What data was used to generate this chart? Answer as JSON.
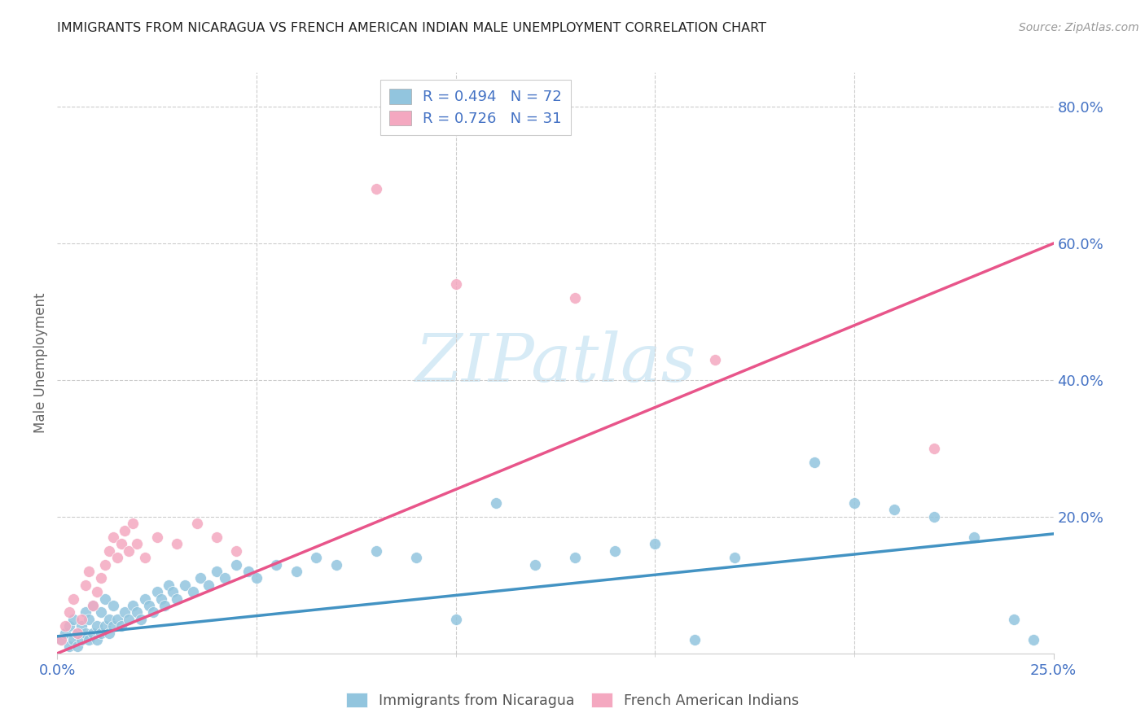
{
  "title": "IMMIGRANTS FROM NICARAGUA VS FRENCH AMERICAN INDIAN MALE UNEMPLOYMENT CORRELATION CHART",
  "source": "Source: ZipAtlas.com",
  "ylabel": "Male Unemployment",
  "R1": 0.494,
  "N1": 72,
  "R2": 0.726,
  "N2": 31,
  "blue_color": "#92c5de",
  "blue_edge_color": "#92c5de",
  "pink_color": "#f4a8c0",
  "pink_edge_color": "#f4a8c0",
  "blue_line_color": "#4393c3",
  "pink_line_color": "#e8558a",
  "blue_line_x0": 0.0,
  "blue_line_y0": 0.025,
  "blue_line_x1": 0.25,
  "blue_line_y1": 0.175,
  "pink_line_x0": 0.0,
  "pink_line_y0": 0.0,
  "pink_line_x1": 0.25,
  "pink_line_y1": 0.6,
  "legend1_label": "Immigrants from Nicaragua",
  "legend2_label": "French American Indians",
  "watermark_text": "ZIPatlas",
  "watermark_color": "#d0e8f5",
  "xlim": [
    0.0,
    0.25
  ],
  "ylim": [
    0.0,
    0.85
  ],
  "ytick_values": [
    0.2,
    0.4,
    0.6,
    0.8
  ],
  "ytick_labels": [
    "20.0%",
    "40.0%",
    "60.0%",
    "80.0%"
  ],
  "blue_scatter_x": [
    0.001,
    0.002,
    0.003,
    0.003,
    0.004,
    0.004,
    0.005,
    0.005,
    0.006,
    0.006,
    0.007,
    0.007,
    0.008,
    0.008,
    0.009,
    0.009,
    0.01,
    0.01,
    0.011,
    0.011,
    0.012,
    0.012,
    0.013,
    0.013,
    0.014,
    0.014,
    0.015,
    0.016,
    0.017,
    0.018,
    0.019,
    0.02,
    0.021,
    0.022,
    0.023,
    0.024,
    0.025,
    0.026,
    0.027,
    0.028,
    0.029,
    0.03,
    0.032,
    0.034,
    0.036,
    0.038,
    0.04,
    0.042,
    0.045,
    0.048,
    0.05,
    0.055,
    0.06,
    0.065,
    0.07,
    0.08,
    0.09,
    0.1,
    0.11,
    0.12,
    0.13,
    0.14,
    0.15,
    0.16,
    0.17,
    0.19,
    0.2,
    0.21,
    0.22,
    0.23,
    0.24,
    0.245
  ],
  "blue_scatter_y": [
    0.02,
    0.03,
    0.01,
    0.04,
    0.02,
    0.05,
    0.01,
    0.03,
    0.02,
    0.04,
    0.03,
    0.06,
    0.02,
    0.05,
    0.03,
    0.07,
    0.02,
    0.04,
    0.03,
    0.06,
    0.04,
    0.08,
    0.03,
    0.05,
    0.04,
    0.07,
    0.05,
    0.04,
    0.06,
    0.05,
    0.07,
    0.06,
    0.05,
    0.08,
    0.07,
    0.06,
    0.09,
    0.08,
    0.07,
    0.1,
    0.09,
    0.08,
    0.1,
    0.09,
    0.11,
    0.1,
    0.12,
    0.11,
    0.13,
    0.12,
    0.11,
    0.13,
    0.12,
    0.14,
    0.13,
    0.15,
    0.14,
    0.05,
    0.22,
    0.13,
    0.14,
    0.15,
    0.16,
    0.02,
    0.14,
    0.28,
    0.22,
    0.21,
    0.2,
    0.17,
    0.05,
    0.02
  ],
  "pink_scatter_x": [
    0.001,
    0.002,
    0.003,
    0.004,
    0.005,
    0.006,
    0.007,
    0.008,
    0.009,
    0.01,
    0.011,
    0.012,
    0.013,
    0.014,
    0.015,
    0.016,
    0.017,
    0.018,
    0.019,
    0.02,
    0.022,
    0.025,
    0.03,
    0.035,
    0.04,
    0.045,
    0.08,
    0.1,
    0.13,
    0.165,
    0.22
  ],
  "pink_scatter_y": [
    0.02,
    0.04,
    0.06,
    0.08,
    0.03,
    0.05,
    0.1,
    0.12,
    0.07,
    0.09,
    0.11,
    0.13,
    0.15,
    0.17,
    0.14,
    0.16,
    0.18,
    0.15,
    0.19,
    0.16,
    0.14,
    0.17,
    0.16,
    0.19,
    0.17,
    0.15,
    0.68,
    0.54,
    0.52,
    0.43,
    0.3
  ]
}
